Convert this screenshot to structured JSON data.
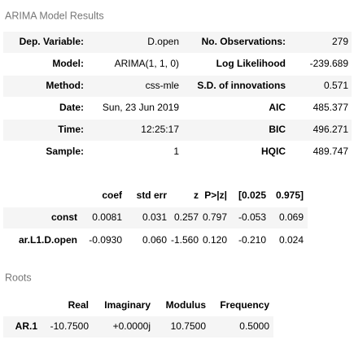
{
  "caption1": "ARIMA Model Results",
  "table1": {
    "rows": [
      [
        "Dep. Variable:",
        "D.open",
        "No. Observations:",
        "279"
      ],
      [
        "Model:",
        "ARIMA(1, 1, 0)",
        "Log Likelihood",
        "-239.689"
      ],
      [
        "Method:",
        "css-mle",
        "S.D. of innovations",
        "0.571"
      ],
      [
        "Date:",
        "Sun, 23 Jun 2019",
        "AIC",
        "485.377"
      ],
      [
        "Time:",
        "12:25:17",
        "BIC",
        "496.271"
      ],
      [
        "Sample:",
        "1",
        "HQIC",
        "489.747"
      ]
    ]
  },
  "table2": {
    "header": [
      "coef",
      "std err",
      "z",
      "P>|z|",
      "[0.025",
      "0.975]"
    ],
    "rows": [
      [
        "const",
        "0.0081",
        "0.031",
        "0.257",
        "0.797",
        "-0.053",
        "0.069"
      ],
      [
        "ar.L1.D.open",
        "-0.0930",
        "0.060",
        "-1.560",
        "0.120",
        "-0.210",
        "0.024"
      ]
    ]
  },
  "caption2": "Roots",
  "table3": {
    "header": [
      "Real",
      "Imaginary",
      "Modulus",
      "Frequency"
    ],
    "rows": [
      [
        "AR.1",
        "-10.7500",
        "+0.0000j",
        "10.7500",
        "0.5000"
      ]
    ]
  }
}
